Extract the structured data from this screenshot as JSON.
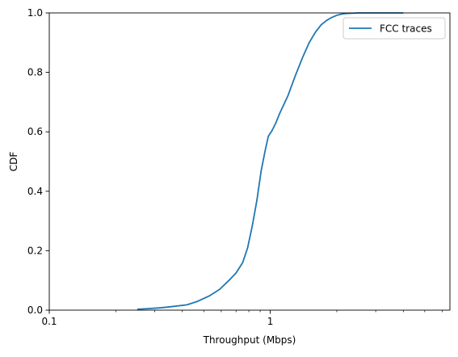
{
  "chart_data": {
    "type": "line",
    "title": "",
    "xlabel": "Throughput (Mbps)",
    "ylabel": "CDF",
    "x_scale": "log",
    "xlim": [
      0.1,
      6.5
    ],
    "ylim": [
      0,
      1
    ],
    "x_ticks": [
      {
        "value": 0.1,
        "label": "0.1"
      },
      {
        "value": 1,
        "label": "1"
      }
    ],
    "y_ticks": [
      {
        "value": 0.0,
        "label": "0.0"
      },
      {
        "value": 0.2,
        "label": "0.2"
      },
      {
        "value": 0.4,
        "label": "0.4"
      },
      {
        "value": 0.6,
        "label": "0.6"
      },
      {
        "value": 0.8,
        "label": "0.8"
      },
      {
        "value": 1.0,
        "label": "1.0"
      }
    ],
    "legend": {
      "position": "top-right"
    },
    "grid": false,
    "series": [
      {
        "name": "FCC traces",
        "color": "#1f77b4",
        "x": [
          0.25,
          0.28,
          0.32,
          0.36,
          0.42,
          0.47,
          0.53,
          0.59,
          0.65,
          0.7,
          0.75,
          0.79,
          0.83,
          0.87,
          0.91,
          0.95,
          0.98,
          1.02,
          1.06,
          1.1,
          1.2,
          1.3,
          1.4,
          1.5,
          1.6,
          1.7,
          1.8,
          1.9,
          2.0,
          2.1,
          2.2,
          2.35,
          2.5,
          2.7,
          3.0,
          3.5,
          4.0
        ],
        "y": [
          0.003,
          0.005,
          0.008,
          0.012,
          0.018,
          0.03,
          0.048,
          0.07,
          0.1,
          0.125,
          0.16,
          0.21,
          0.285,
          0.37,
          0.47,
          0.54,
          0.585,
          0.605,
          0.63,
          0.66,
          0.72,
          0.79,
          0.85,
          0.9,
          0.935,
          0.96,
          0.975,
          0.985,
          0.992,
          0.996,
          0.998,
          0.999,
          1.0,
          1.0,
          1.0,
          1.0,
          1.0
        ]
      }
    ]
  }
}
